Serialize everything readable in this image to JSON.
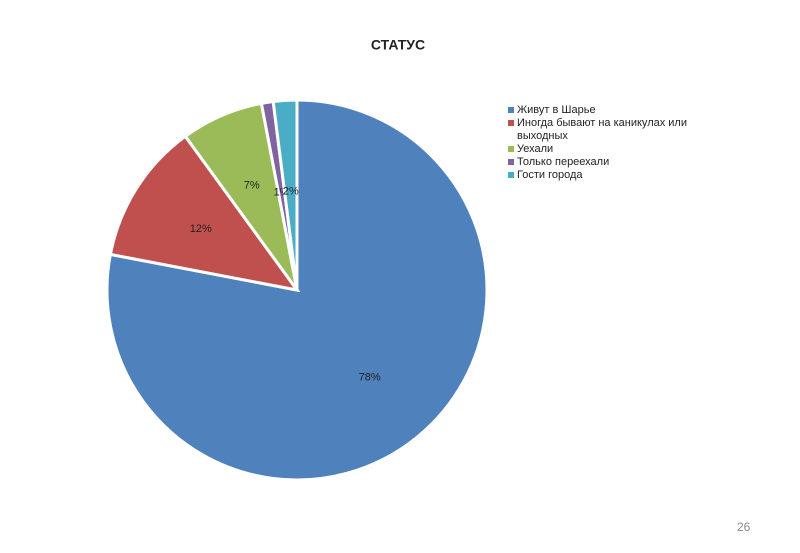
{
  "chart_data": {
    "type": "pie",
    "title": "СТАТУС",
    "categories": [
      "Живут в Шарье",
      "Иногда бывают на каникулах или выходных",
      "Уехали",
      "Только переехали",
      "Гости города"
    ],
    "values": [
      78,
      12,
      7,
      1,
      2
    ],
    "value_labels": [
      "78%",
      "12%",
      "7%",
      "1%",
      "2%"
    ],
    "colors": [
      "#4f81bd",
      "#c0504d",
      "#9bbb59",
      "#8064a2",
      "#4bacc6"
    ],
    "legend": "right"
  },
  "page_number": "26"
}
